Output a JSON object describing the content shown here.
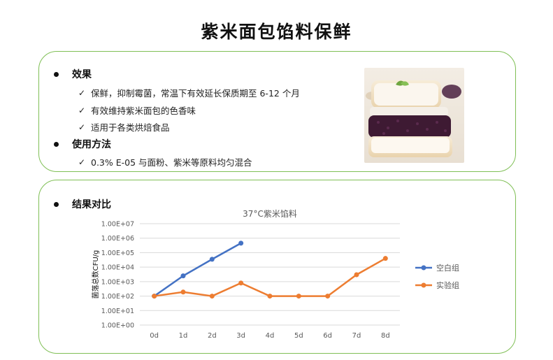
{
  "page": {
    "title": "紫米面包馅料保鲜"
  },
  "effect_section": {
    "heading": "效果",
    "items": [
      "保鲜，抑制霉菌，常温下有效延长保质期至 6-12 个月",
      "有效维持紫米面包的色香味",
      "适用于各类烘焙食品"
    ]
  },
  "usage_section": {
    "heading": "使用方法",
    "items": [
      "0.3% E-05 与面粉、紫米等原料均匀混合"
    ]
  },
  "photo": {
    "icon": "bread-sandwich-photo"
  },
  "result_section": {
    "heading": "结果对比"
  },
  "colors": {
    "accent_border": "#7fbf55",
    "blank_series": "#4472c4",
    "experiment_series": "#ed7d31"
  },
  "chart_data": {
    "type": "line",
    "title": "37°C紫米馅料",
    "ylabel": "菌落总数CFU/g",
    "xlabel": "",
    "y_scale": "log",
    "ylim": [
      1,
      10000000
    ],
    "yticks": [
      "1.00E+00",
      "1.00E+01",
      "1.00E+02",
      "1.00E+03",
      "1.00E+04",
      "1.00E+05",
      "1.00E+06",
      "1.00E+07"
    ],
    "categories": [
      "0d",
      "1d",
      "2d",
      "3d",
      "4d",
      "5d",
      "6d",
      "7d",
      "8d"
    ],
    "grid": true,
    "legend_position": "right",
    "series": [
      {
        "name": "空白组",
        "color": "#4472c4",
        "values": [
          100,
          2500,
          35000,
          450000,
          null,
          null,
          null,
          null,
          null
        ]
      },
      {
        "name": "实验组",
        "color": "#ed7d31",
        "values": [
          100,
          190,
          100,
          800,
          100,
          100,
          100,
          3000,
          40000
        ]
      }
    ]
  }
}
